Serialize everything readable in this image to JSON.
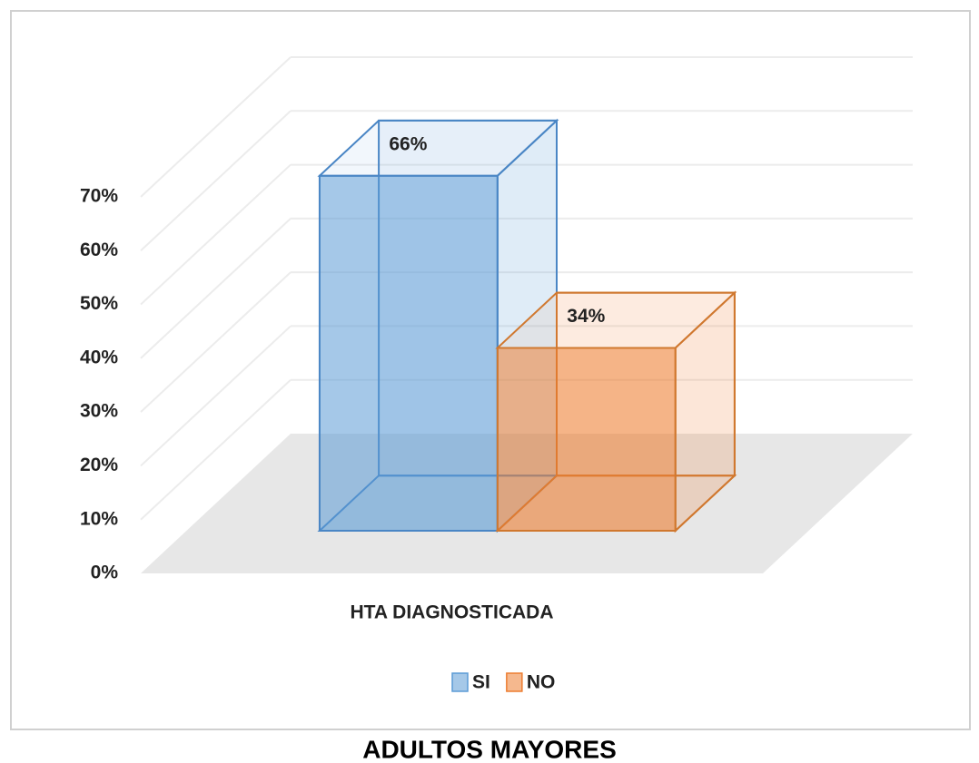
{
  "chart_data": {
    "type": "bar3d",
    "title": "ADULTOS MAYORES",
    "categories": [
      "HTA DIAGNOSTICADA"
    ],
    "series": [
      {
        "name": "SI",
        "color": "#5b9bd5",
        "values": [
          66
        ],
        "value_labels": [
          "66%"
        ]
      },
      {
        "name": "NO",
        "color": "#ed7d31",
        "values": [
          34
        ],
        "value_labels": [
          "34%"
        ]
      }
    ],
    "ylim": [
      0,
      70
    ],
    "yticks": [
      {
        "value": 0,
        "label": "0%"
      },
      {
        "value": 10,
        "label": "10%"
      },
      {
        "value": 20,
        "label": "20%"
      },
      {
        "value": 30,
        "label": "30%"
      },
      {
        "value": 40,
        "label": "40%"
      },
      {
        "value": 50,
        "label": "50%"
      },
      {
        "value": 60,
        "label": "60%"
      },
      {
        "value": 70,
        "label": "70%"
      }
    ],
    "grid": true,
    "legend": "bottom"
  }
}
